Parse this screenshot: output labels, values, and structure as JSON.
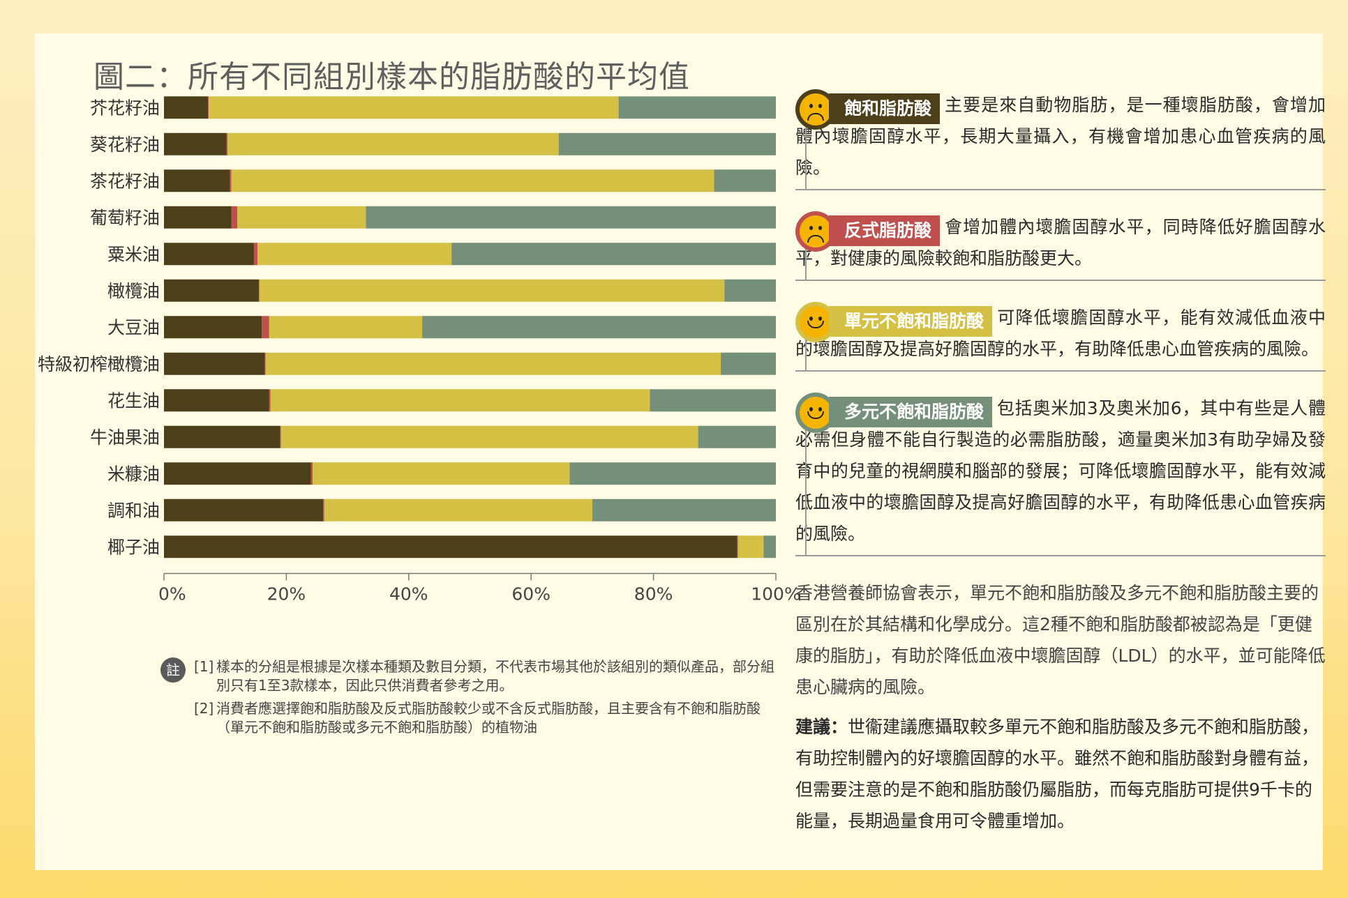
{
  "title": "圖二：所有不同組別樣本的脂肪酸的平均值",
  "colors": {
    "saturated": "#4e3f1b",
    "trans": "#c0504d",
    "mono": "#d4c044",
    "poly": "#75907a"
  },
  "chart_data": {
    "type": "bar",
    "orientation": "horizontal",
    "stacked": true,
    "categories": [
      "芥花籽油",
      "葵花籽油",
      "茶花籽油",
      "葡萄籽油",
      "粟米油",
      "橄欖油",
      "大豆油",
      "特級初榨橄欖油",
      "花生油",
      "牛油果油",
      "米糠油",
      "調和油",
      "椰子油"
    ],
    "series": [
      {
        "name": "飽和脂肪酸",
        "color": "#4e3f1b",
        "values": [
          7.2,
          10.2,
          10.8,
          11.0,
          14.7,
          15.5,
          16.0,
          16.5,
          17.2,
          19.0,
          24.0,
          26.0,
          93.7
        ]
      },
      {
        "name": "反式脂肪酸",
        "color": "#c0504d",
        "values": [
          0.1,
          0.2,
          0.2,
          1.0,
          0.6,
          0.1,
          1.2,
          0.1,
          0.2,
          0.1,
          0.3,
          0.2,
          0.1
        ]
      },
      {
        "name": "單元不飽和脂肪酸",
        "color": "#d4c044",
        "values": [
          67.0,
          54.1,
          78.9,
          21.0,
          31.7,
          76.0,
          25.0,
          74.4,
          62.0,
          68.2,
          42.0,
          43.8,
          4.2
        ]
      },
      {
        "name": "多元不飽和脂肪酸",
        "color": "#75907a",
        "values": [
          25.7,
          35.5,
          10.1,
          67.0,
          53.0,
          8.4,
          57.8,
          9.0,
          20.6,
          12.7,
          33.7,
          30.0,
          2.0
        ]
      }
    ],
    "xlim": [
      0,
      100
    ],
    "xticks": [
      "0%",
      "20%",
      "40%",
      "60%",
      "80%",
      "100%"
    ],
    "grid": false,
    "legend": "none"
  },
  "notes": {
    "badge": "註",
    "items": [
      {
        "num": "[1]",
        "text": "樣本的分組是根據是次樣本種類及數目分類，不代表市場其他於該組別的類似產品，部分組別只有1至3款樣本，因此只供消費者參考之用。"
      },
      {
        "num": "[2]",
        "text": "消費者應選擇飽和脂肪酸及反式脂肪酸較少或不含反式脂肪酸，且主要含有不飽和脂肪酸（單元不飽和脂肪酸或多元不飽和脂肪酸）的植物油"
      }
    ]
  },
  "cards": [
    {
      "face": "sad",
      "tag": "飽和脂肪酸",
      "tag_color": "#4e3f1b",
      "ring": "#4e3f1b",
      "text": "主要是來自動物脂肪，是一種壞脂肪酸，會增加體內壞膽固醇水平，長期大量攝入，有機會增加患心血管疾病的風險。"
    },
    {
      "face": "sad",
      "tag": "反式脂肪酸",
      "tag_color": "#c0504d",
      "ring": "#c0504d",
      "text": "會增加體內壞膽固醇水平，同時降低好膽固醇水平，對健康的風險較飽和脂肪酸更大。"
    },
    {
      "face": "happy",
      "tag": "單元不飽和脂肪酸",
      "tag_color": "#d4c044",
      "ring": "#d4c044",
      "text": "可降低壞膽固醇水平，能有效減低血液中的壞膽固醇及提高好膽固醇的水平，有助降低患心血管疾病的風險。"
    },
    {
      "face": "happy",
      "tag": "多元不飽和脂肪酸",
      "tag_color": "#75907a",
      "ring": "#75907a",
      "text": "包括奧米加3及奧米加6，其中有些是人體必需但身體不能自行製造的必需脂肪酸，適量奧米加3有助孕婦及發育中的兒童的視網膜和腦部的發展；可降低壞膽固醇水平，能有效減低血液中的壞膽固醇及提高好膽固醇的水平，有助降低患心血管疾病的風險。"
    }
  ],
  "statement": "香港營養師協會表示，單元不飽和脂肪酸及多元不飽和脂肪酸主要的區別在於其結構和化學成分。這2種不飽和脂肪酸都被認為是「更健康的脂肪」，有助於降低血液中壞膽固醇（LDL）的水平，並可能降低患心臟病的風險。",
  "advice": {
    "label": "建議：",
    "text": "世衞建議應攝取較多單元不飽和脂肪酸及多元不飽和脂肪酸，有助控制體內的好壞膽固醇的水平。雖然不飽和脂肪酸對身體有益，但需要注意的是不飽和脂肪酸仍屬脂肪，而每克脂肪可提供9千卡的能量，長期過量食用可令體重增加。"
  }
}
